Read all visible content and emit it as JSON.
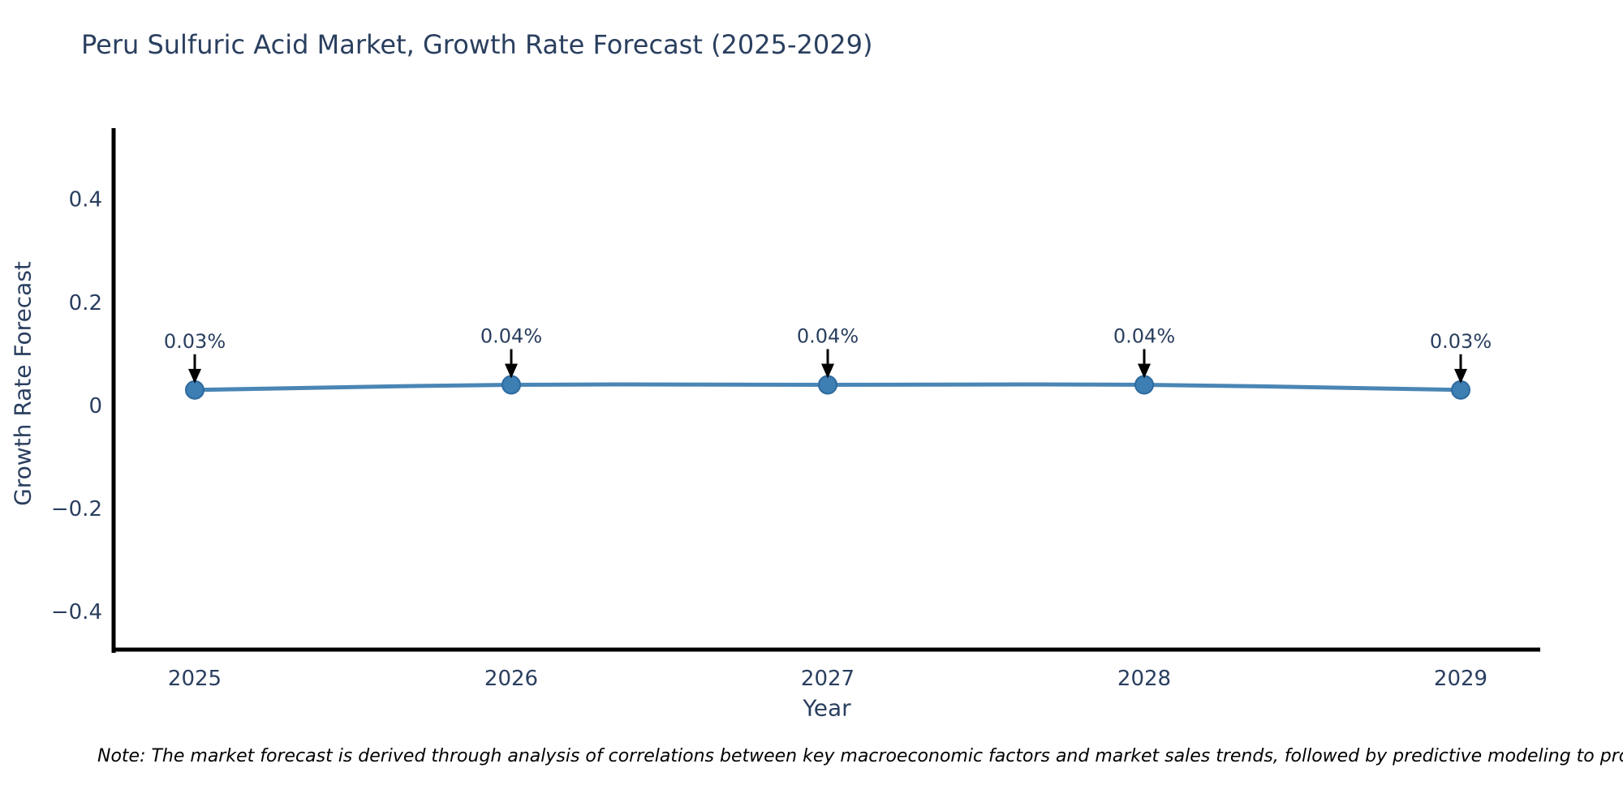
{
  "title": "Peru Sulfuric Acid Market, Growth Rate Forecast (2025-2029)",
  "footnote": "Note: The market forecast is derived through analysis of correlations between key macroeconomic factors and market sales trends, followed by predictive modeling to project future sales.",
  "chart_data": {
    "type": "line",
    "title": "Peru Sulfuric Acid Market, Growth Rate Forecast (2025-2029)",
    "xlabel": "Year",
    "ylabel": "Growth Rate Forecast",
    "categories": [
      "2025",
      "2026",
      "2027",
      "2028",
      "2029"
    ],
    "series": [
      {
        "name": "Growth Rate Forecast",
        "values": [
          0.03,
          0.04,
          0.04,
          0.04,
          0.03
        ]
      }
    ],
    "point_labels": [
      "0.03%",
      "0.04%",
      "0.04%",
      "0.04%",
      "0.03%"
    ],
    "ytick_values": [
      0.4,
      0.2,
      0,
      -0.2,
      -0.4
    ],
    "ytick_labels": [
      "0.4",
      "0.2",
      "0",
      "−0.2",
      "−0.4"
    ],
    "ylim": [
      -0.477,
      0.538
    ],
    "grid": false,
    "legend": "none",
    "annotation_arrows": true,
    "colors": {
      "line": "#4a86b5",
      "marker_fill": "#3d7eb3",
      "marker_edge": "#2d6a9f",
      "axis": "#000000",
      "tick_text": "#2a3f5f",
      "annotation_text": "#2a3f5f",
      "arrow": "#000000",
      "title_text": "#2a3f5f",
      "background": "#ffffff"
    }
  }
}
